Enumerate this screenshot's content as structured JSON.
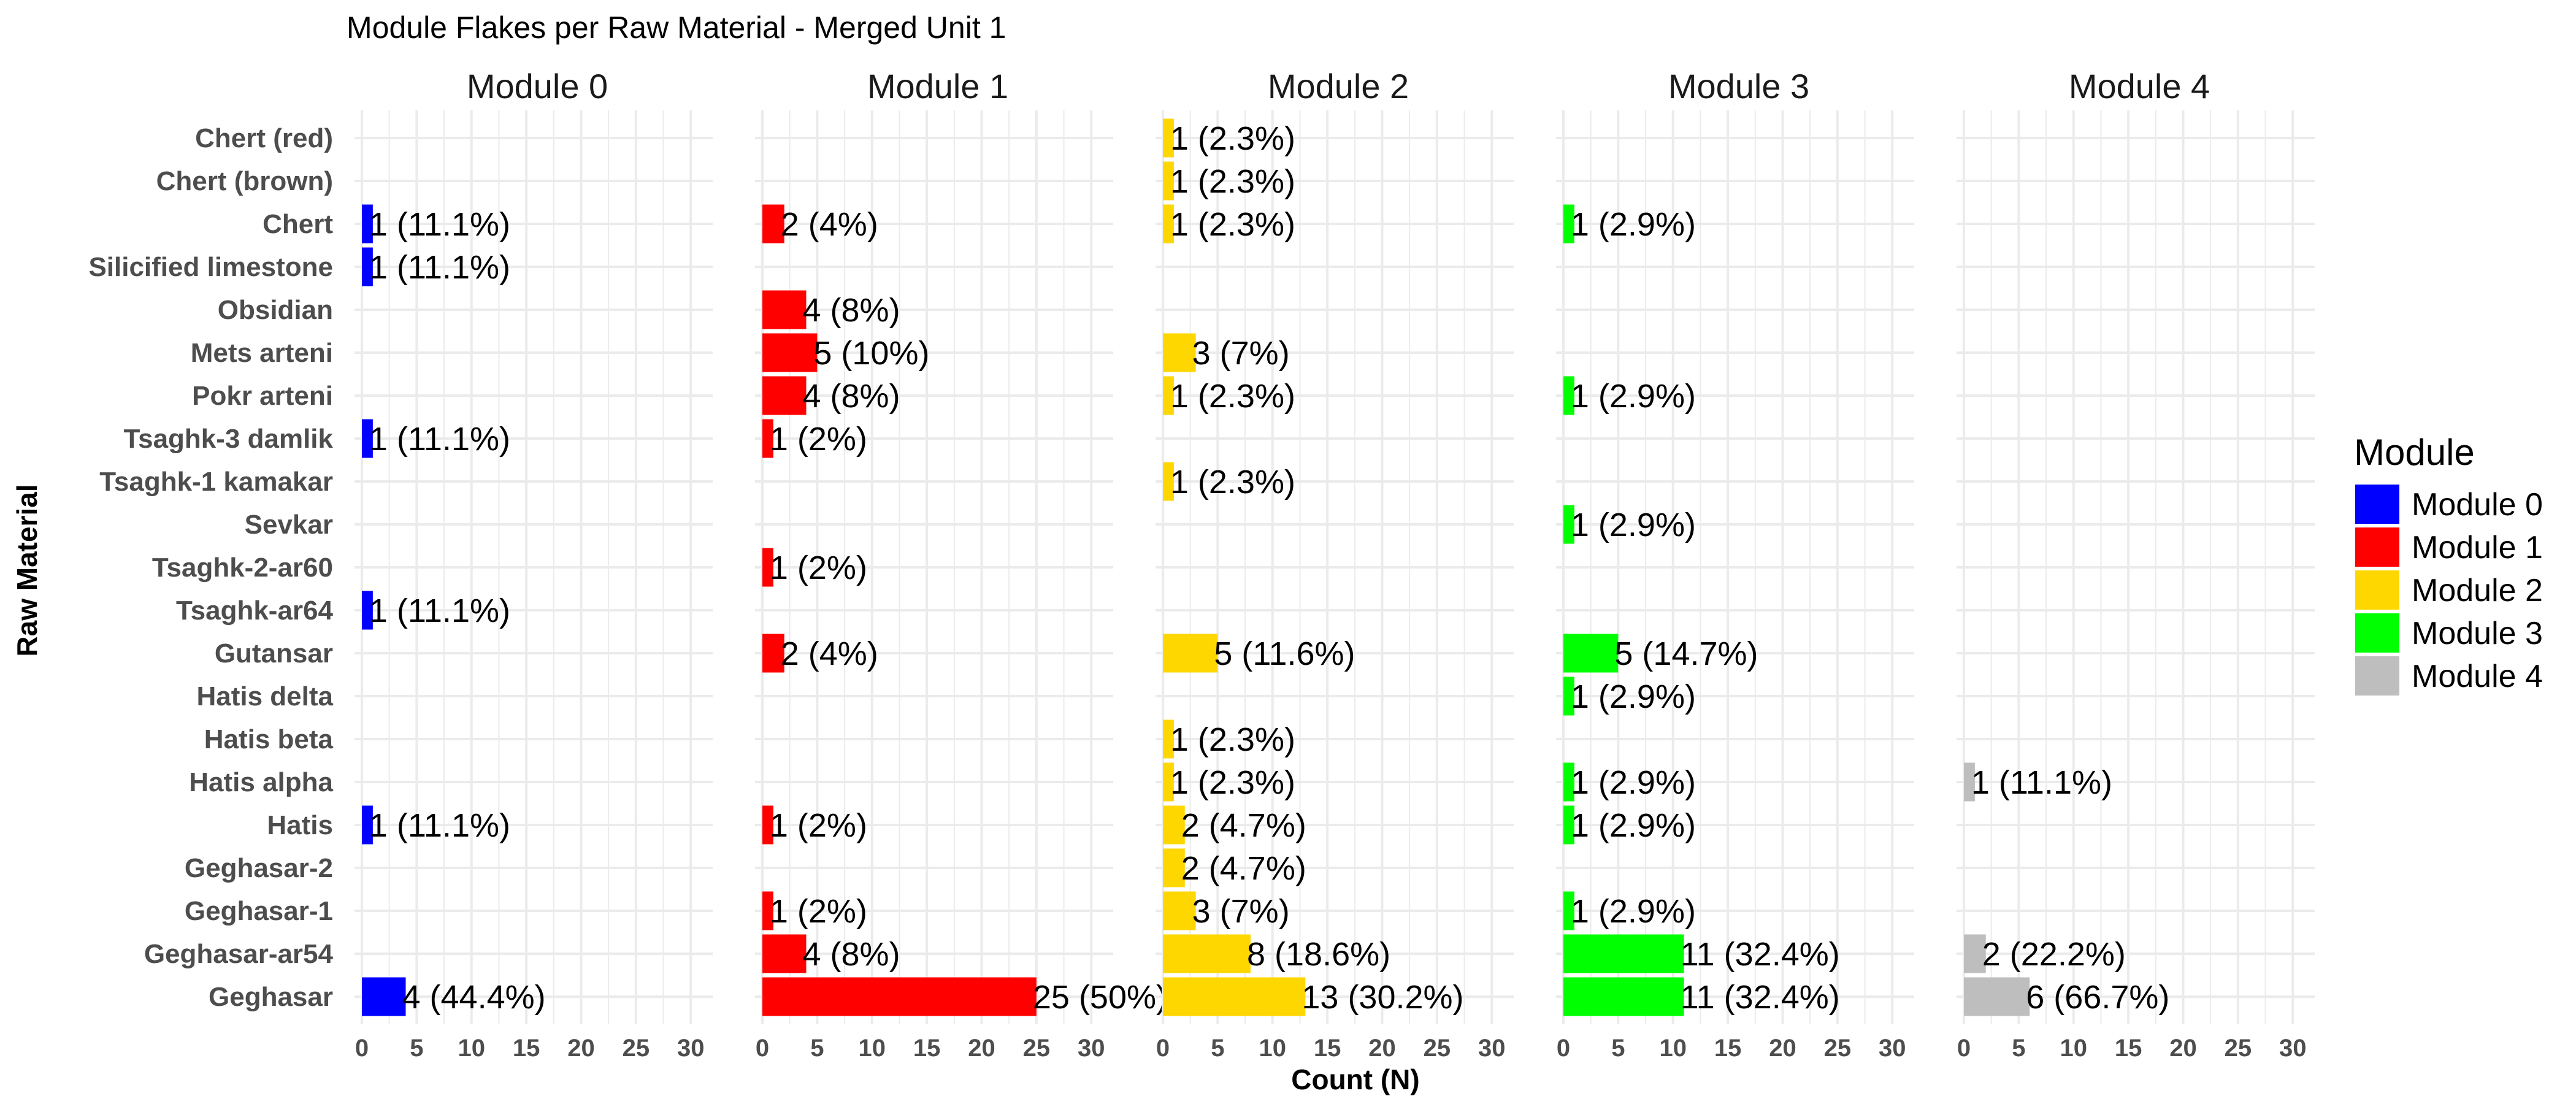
{
  "chart_data": {
    "type": "bar",
    "orientation": "horizontal",
    "title": "Module Flakes per Raw Material - Merged Unit 1",
    "xlabel": "Count (N)",
    "ylabel": "Raw Material",
    "xlim": [
      0,
      32
    ],
    "xticks": [
      0,
      5,
      10,
      15,
      20,
      25,
      30
    ],
    "grid": true,
    "legend": {
      "title": "Module",
      "position": "right"
    },
    "categories": [
      "Chert (red)",
      "Chert (brown)",
      "Chert",
      "Silicified limestone",
      "Obsidian",
      "Mets arteni",
      "Pokr arteni",
      "Tsaghk-3 damlik",
      "Tsaghk-1 kamakar",
      "Sevkar",
      "Tsaghk-2-ar60",
      "Tsaghk-ar64",
      "Gutansar",
      "Hatis delta",
      "Hatis beta",
      "Hatis alpha",
      "Hatis",
      "Geghasar-2",
      "Geghasar-1",
      "Geghasar-ar54",
      "Geghasar"
    ],
    "series": [
      {
        "name": "Module 0",
        "color": "#0000ff",
        "points": [
          {
            "category": "Chert",
            "value": 1,
            "label": "1 (11.1%)"
          },
          {
            "category": "Silicified limestone",
            "value": 1,
            "label": "1 (11.1%)"
          },
          {
            "category": "Tsaghk-3 damlik",
            "value": 1,
            "label": "1 (11.1%)"
          },
          {
            "category": "Tsaghk-ar64",
            "value": 1,
            "label": "1 (11.1%)"
          },
          {
            "category": "Hatis",
            "value": 1,
            "label": "1 (11.1%)"
          },
          {
            "category": "Geghasar",
            "value": 4,
            "label": "4 (44.4%)"
          }
        ]
      },
      {
        "name": "Module 1",
        "color": "#ff0000",
        "points": [
          {
            "category": "Chert",
            "value": 2,
            "label": "2 (4%)"
          },
          {
            "category": "Obsidian",
            "value": 4,
            "label": "4 (8%)"
          },
          {
            "category": "Mets arteni",
            "value": 5,
            "label": "5 (10%)"
          },
          {
            "category": "Pokr arteni",
            "value": 4,
            "label": "4 (8%)"
          },
          {
            "category": "Tsaghk-3 damlik",
            "value": 1,
            "label": "1 (2%)"
          },
          {
            "category": "Tsaghk-2-ar60",
            "value": 1,
            "label": "1 (2%)"
          },
          {
            "category": "Gutansar",
            "value": 2,
            "label": "2 (4%)"
          },
          {
            "category": "Hatis",
            "value": 1,
            "label": "1 (2%)"
          },
          {
            "category": "Geghasar-1",
            "value": 1,
            "label": "1 (2%)"
          },
          {
            "category": "Geghasar-ar54",
            "value": 4,
            "label": "4 (8%)"
          },
          {
            "category": "Geghasar",
            "value": 25,
            "label": "25 (50%)"
          }
        ]
      },
      {
        "name": "Module 2",
        "color": "#ffd700",
        "points": [
          {
            "category": "Chert (red)",
            "value": 1,
            "label": "1 (2.3%)"
          },
          {
            "category": "Chert (brown)",
            "value": 1,
            "label": "1 (2.3%)"
          },
          {
            "category": "Chert",
            "value": 1,
            "label": "1 (2.3%)"
          },
          {
            "category": "Mets arteni",
            "value": 3,
            "label": "3 (7%)"
          },
          {
            "category": "Pokr arteni",
            "value": 1,
            "label": "1 (2.3%)"
          },
          {
            "category": "Tsaghk-1 kamakar",
            "value": 1,
            "label": "1 (2.3%)"
          },
          {
            "category": "Gutansar",
            "value": 5,
            "label": "5 (11.6%)"
          },
          {
            "category": "Hatis beta",
            "value": 1,
            "label": "1 (2.3%)"
          },
          {
            "category": "Hatis alpha",
            "value": 1,
            "label": "1 (2.3%)"
          },
          {
            "category": "Hatis",
            "value": 2,
            "label": "2 (4.7%)"
          },
          {
            "category": "Geghasar-2",
            "value": 2,
            "label": "2 (4.7%)"
          },
          {
            "category": "Geghasar-1",
            "value": 3,
            "label": "3 (7%)"
          },
          {
            "category": "Geghasar-ar54",
            "value": 8,
            "label": "8 (18.6%)"
          },
          {
            "category": "Geghasar",
            "value": 13,
            "label": "13 (30.2%)"
          }
        ]
      },
      {
        "name": "Module 3",
        "color": "#00ff00",
        "points": [
          {
            "category": "Chert",
            "value": 1,
            "label": "1 (2.9%)"
          },
          {
            "category": "Pokr arteni",
            "value": 1,
            "label": "1 (2.9%)"
          },
          {
            "category": "Sevkar",
            "value": 1,
            "label": "1 (2.9%)"
          },
          {
            "category": "Gutansar",
            "value": 5,
            "label": "5 (14.7%)"
          },
          {
            "category": "Hatis delta",
            "value": 1,
            "label": "1 (2.9%)"
          },
          {
            "category": "Hatis alpha",
            "value": 1,
            "label": "1 (2.9%)"
          },
          {
            "category": "Hatis",
            "value": 1,
            "label": "1 (2.9%)"
          },
          {
            "category": "Geghasar-1",
            "value": 1,
            "label": "1 (2.9%)"
          },
          {
            "category": "Geghasar-ar54",
            "value": 11,
            "label": "11 (32.4%)"
          },
          {
            "category": "Geghasar",
            "value": 11,
            "label": "11 (32.4%)"
          }
        ]
      },
      {
        "name": "Module 4",
        "color": "#bebebe",
        "points": [
          {
            "category": "Hatis alpha",
            "value": 1,
            "label": "1 (11.1%)"
          },
          {
            "category": "Geghasar-ar54",
            "value": 2,
            "label": "2 (22.2%)"
          },
          {
            "category": "Geghasar",
            "value": 6,
            "label": "6 (66.7%)"
          }
        ]
      }
    ]
  }
}
